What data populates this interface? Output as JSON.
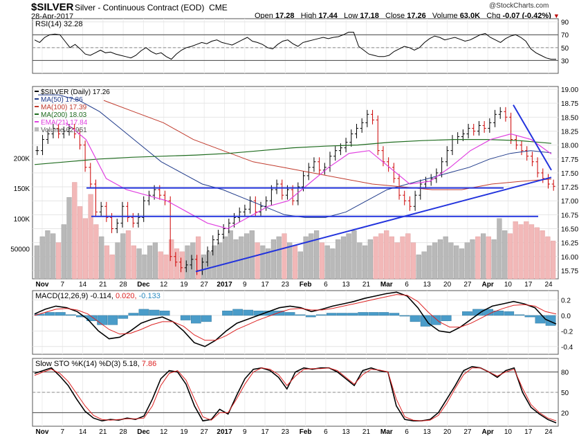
{
  "header": {
    "symbol": "$SILVER",
    "contract": "Silver - Continuous Contract (EOD)",
    "exchange": "CME",
    "date": "28-Apr-2017",
    "copyright": "@StockCharts.com",
    "open_label": "Open",
    "open": "17.28",
    "high_label": "High",
    "high": "17.44",
    "low_label": "Low",
    "low": "17.18",
    "close_label": "Close",
    "close": "17.26",
    "volume_label": "Volume",
    "volume": "63.0K",
    "chg_label": "Chg",
    "chg": "-0.07 (-0.42%)"
  },
  "colors": {
    "ma50": "#1f3a8a",
    "ma100": "#c0392b",
    "ma200": "#1e6b1e",
    "ema21": "#e040e0",
    "trendline": "#2233dd",
    "volume_up": "#b9b9b9",
    "volume_down": "#f2b8b8",
    "macd_hist": "#4a9cc9"
  },
  "chart_data": [
    {
      "type": "line",
      "panel": "RSI",
      "title": "RSI(14) 32.28",
      "ylim": [
        10,
        95
      ],
      "yticks": [
        90,
        70,
        50,
        30
      ],
      "series": [
        {
          "name": "RSI(14)",
          "values": [
            62,
            58,
            66,
            70,
            71,
            70,
            60,
            50,
            55,
            48,
            40,
            38,
            42,
            46,
            42,
            43,
            40,
            38,
            36,
            34,
            38,
            45,
            50,
            44,
            40,
            42,
            36,
            32,
            40,
            46,
            50,
            52,
            55,
            58,
            56,
            60,
            62,
            58,
            56,
            54,
            58,
            62,
            66,
            60,
            58,
            55,
            50,
            48,
            55,
            60,
            62,
            56,
            52,
            58,
            60,
            62,
            64,
            66,
            64,
            66,
            67,
            70,
            74,
            74,
            52,
            46,
            40,
            38,
            36,
            36,
            38,
            44,
            48,
            52,
            50,
            46,
            50,
            58,
            64,
            68,
            66,
            62,
            64,
            66,
            63,
            60,
            62,
            66,
            70,
            72,
            66,
            62,
            58,
            64,
            68,
            70,
            66,
            60,
            48,
            42,
            38,
            34,
            32,
            32
          ]
        }
      ]
    },
    {
      "type": "line",
      "panel": "price",
      "title": "$SILVER (Daily) 17.26",
      "ylim": [
        15.6,
        19.05
      ],
      "yticks": [
        "19.00",
        "18.75",
        "18.50",
        "18.25",
        "18.00",
        "17.75",
        "17.50",
        "17.25",
        "17.00",
        "16.75",
        "16.50",
        "16.25",
        "16.00",
        "15.75"
      ],
      "xticks": [
        "Nov",
        "7",
        "14",
        "21",
        "28",
        "Dec",
        "12",
        "19",
        "27",
        "2017",
        "9",
        "17",
        "23",
        "Feb",
        "6",
        "13",
        "21",
        "Mar",
        "6",
        "13",
        "20",
        "27",
        "Apr",
        "10",
        "17",
        "24"
      ],
      "closes": [
        17.9,
        18.1,
        18.2,
        18.3,
        18.2,
        18.25,
        18.3,
        18.2,
        18.0,
        17.6,
        17.3,
        16.8,
        16.9,
        16.7,
        16.5,
        16.6,
        16.9,
        16.7,
        16.6,
        16.7,
        17.0,
        17.1,
        17.2,
        17.1,
        17.0,
        16.0,
        15.9,
        15.8,
        15.85,
        15.95,
        15.75,
        15.9,
        16.1,
        16.3,
        16.4,
        16.5,
        16.6,
        16.7,
        16.8,
        16.85,
        17.0,
        16.8,
        16.9,
        17.0,
        17.2,
        17.3,
        17.1,
        17.2,
        17.0,
        17.25,
        17.45,
        17.6,
        17.7,
        17.55,
        17.6,
        17.8,
        17.9,
        17.95,
        18.05,
        18.2,
        18.3,
        18.4,
        18.55,
        18.45,
        17.9,
        17.7,
        17.6,
        17.4,
        17.1,
        17.0,
        16.9,
        17.1,
        17.3,
        17.35,
        17.4,
        17.5,
        17.7,
        17.9,
        18.1,
        18.15,
        18.2,
        18.3,
        18.25,
        18.35,
        18.3,
        18.4,
        18.55,
        18.6,
        18.5,
        18.1,
        18.0,
        17.9,
        17.8,
        17.7,
        17.5,
        17.4,
        17.3,
        17.26
      ],
      "series": [
        {
          "name": "MA(50) 17.86",
          "values": [
            18.9,
            18.9,
            18.8,
            18.6,
            18.3,
            18.0,
            17.7,
            17.5,
            17.3,
            17.2,
            17.05,
            16.9,
            16.75,
            16.7,
            16.7,
            16.8,
            17.0,
            17.2,
            17.3,
            17.4,
            17.5,
            17.6,
            17.75,
            17.85,
            17.9,
            17.86
          ]
        },
        {
          "name": "MA(100) 17.39",
          "values": [
            18.8,
            18.6,
            18.4,
            18.1,
            17.9,
            17.7,
            17.6,
            17.5,
            17.4,
            17.3,
            17.25,
            17.2,
            17.2,
            17.3,
            17.35,
            17.39
          ]
        },
        {
          "name": "MA(200) 18.03",
          "values": [
            17.65,
            17.7,
            17.75,
            17.78,
            17.8,
            17.82,
            17.85,
            17.9,
            17.95,
            17.98,
            18.0,
            18.05,
            18.08,
            18.1,
            18.1,
            18.08,
            18.03
          ]
        },
        {
          "name": "EMA(21) 17.84",
          "values": [
            18.4,
            18.1,
            17.4,
            17.2,
            17.1,
            17.0,
            16.8,
            16.6,
            16.5,
            16.7,
            16.9,
            17.0,
            17.3,
            17.6,
            17.85,
            17.9,
            17.6,
            17.3,
            17.35,
            17.6,
            17.9,
            18.1,
            18.2,
            18.1,
            17.84
          ]
        }
      ]
    },
    {
      "type": "bar",
      "panel": "volume",
      "title": "Volume 62,951",
      "ylim": [
        0,
        250000
      ],
      "yticks": [
        "200K",
        "150K",
        "100K",
        "50000"
      ],
      "values": [
        55000,
        70000,
        80000,
        75000,
        60000,
        90000,
        135000,
        160000,
        120000,
        100000,
        140000,
        90000,
        70000,
        55000,
        40000,
        60000,
        75000,
        80000,
        55000,
        50000,
        40000,
        55000,
        60000,
        45000,
        40000,
        65000,
        50000,
        45000,
        55000,
        60000,
        70000,
        40000,
        45000,
        55000,
        60000,
        70000,
        80000,
        65000,
        70000,
        75000,
        80000,
        60000,
        55000,
        50000,
        65000,
        70000,
        75000,
        60000,
        55000,
        45000,
        70000,
        75000,
        80000,
        60000,
        55000,
        50000,
        65000,
        70000,
        75000,
        80000,
        60000,
        55000,
        65000,
        70000,
        75000,
        80000,
        70000,
        60000,
        70000,
        75000,
        60000,
        40000,
        45000,
        55000,
        60000,
        65000,
        70000,
        60000,
        55000,
        50000,
        60000,
        65000,
        70000,
        75000,
        70000,
        65000,
        100000,
        80000,
        75000,
        95000,
        90000,
        95000,
        90000,
        85000,
        80000,
        70000,
        63000
      ]
    },
    {
      "type": "line",
      "panel": "MACD",
      "title": "MACD(12,26,9)",
      "label_values": {
        "macd": "-0.114",
        "signal": "0.020",
        "hist": "-0.133"
      },
      "ylim": [
        -0.5,
        0.32
      ],
      "yticks": [
        "0.2",
        "0.0",
        "-0.2",
        "-0.4"
      ],
      "series": [
        {
          "name": "MACD",
          "values": [
            0.02,
            0.08,
            0.12,
            0.1,
            0.05,
            -0.05,
            -0.2,
            -0.3,
            -0.28,
            -0.2,
            -0.1,
            -0.05,
            -0.02,
            -0.08,
            -0.2,
            -0.35,
            -0.4,
            -0.32,
            -0.2,
            -0.1,
            -0.05,
            0.0,
            0.05,
            0.1,
            0.12,
            0.1,
            0.05,
            0.08,
            0.12,
            0.15,
            0.18,
            0.22,
            0.25,
            0.28,
            0.3,
            0.25,
            0.1,
            -0.1,
            -0.2,
            -0.22,
            -0.15,
            -0.05,
            0.05,
            0.12,
            0.15,
            0.18,
            0.15,
            0.1,
            -0.05,
            -0.11
          ]
        },
        {
          "name": "Signal",
          "values": [
            0.0,
            0.04,
            0.08,
            0.09,
            0.07,
            0.02,
            -0.08,
            -0.18,
            -0.24,
            -0.23,
            -0.18,
            -0.12,
            -0.08,
            -0.08,
            -0.14,
            -0.25,
            -0.32,
            -0.32,
            -0.26,
            -0.18,
            -0.12,
            -0.06,
            -0.01,
            0.04,
            0.08,
            0.09,
            0.07,
            0.07,
            0.09,
            0.12,
            0.15,
            0.18,
            0.21,
            0.24,
            0.27,
            0.26,
            0.18,
            0.04,
            -0.08,
            -0.15,
            -0.15,
            -0.1,
            -0.03,
            0.04,
            0.09,
            0.13,
            0.14,
            0.12,
            0.05,
            0.02
          ]
        }
      ]
    },
    {
      "type": "line",
      "panel": "Slow STO",
      "title": "Slow STO %K(14) %D(3)",
      "label_values": {
        "k": "5.18",
        "d": "7.86"
      },
      "ylim": [
        0,
        100
      ],
      "yticks": [
        "80",
        "50",
        "20"
      ],
      "series": [
        {
          "name": "%K",
          "values": [
            78,
            82,
            86,
            74,
            60,
            40,
            22,
            12,
            8,
            10,
            9,
            12,
            10,
            15,
            40,
            70,
            82,
            80,
            62,
            30,
            8,
            10,
            25,
            18,
            45,
            70,
            84,
            86,
            82,
            72,
            55,
            80,
            86,
            84,
            86,
            86,
            80,
            70,
            60,
            82,
            86,
            82,
            80,
            30,
            10,
            8,
            8,
            10,
            20,
            40,
            60,
            82,
            88,
            86,
            80,
            72,
            82,
            86,
            50,
            28,
            18,
            10,
            5
          ]
        },
        {
          "name": "%D",
          "values": [
            75,
            80,
            84,
            78,
            66,
            48,
            30,
            16,
            10,
            9,
            10,
            11,
            11,
            12,
            30,
            60,
            78,
            82,
            68,
            40,
            14,
            9,
            20,
            20,
            40,
            62,
            80,
            86,
            84,
            76,
            60,
            74,
            84,
            85,
            85,
            86,
            82,
            72,
            62,
            76,
            84,
            83,
            80,
            40,
            14,
            9,
            8,
            9,
            16,
            34,
            56,
            76,
            86,
            86,
            80,
            74,
            80,
            84,
            56,
            32,
            20,
            12,
            8
          ]
        }
      ]
    }
  ]
}
